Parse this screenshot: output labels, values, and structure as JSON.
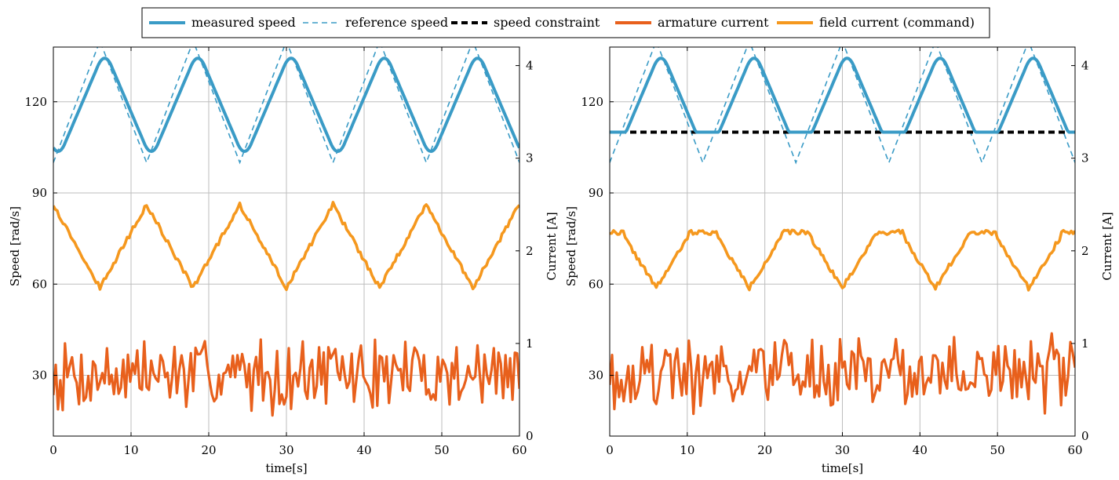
{
  "legend": {
    "items": [
      {
        "label": "measured speed",
        "color": "#3a9bc6",
        "style": "solid",
        "width": 4
      },
      {
        "label": "reference speed",
        "color": "#3a9bc6",
        "style": "dashed",
        "width": 1.6
      },
      {
        "label": "speed constraint",
        "color": "#000000",
        "style": "dashed",
        "width": 4
      },
      {
        "label": "armature current",
        "color": "#e8601c",
        "style": "solid",
        "width": 4
      },
      {
        "label": "field current (command)",
        "color": "#f5981e",
        "style": "solid",
        "width": 4
      }
    ]
  },
  "chart_data": [
    {
      "type": "line",
      "panel": "left",
      "xlabel": "time[s]",
      "ylabel": "Speed [rad/s]",
      "y2label": "Current [A]",
      "xlim": [
        0,
        60
      ],
      "ylim": [
        10,
        138
      ],
      "y2lim": [
        0,
        4.2
      ],
      "xticks": [
        0,
        10,
        20,
        30,
        40,
        50,
        60
      ],
      "yticks": [
        30,
        60,
        90,
        120
      ],
      "y2ticks": [
        0,
        1,
        2,
        3,
        4
      ],
      "grid": true,
      "reference_speed": {
        "min": 100,
        "max": 140,
        "period": 12,
        "phase": 0
      },
      "measured_speed": {
        "min": 101,
        "max": 137,
        "lag": 0.6
      },
      "speed_constraint": null,
      "field_current": {
        "min": 1.6,
        "max": 2.5
      },
      "armature_current": {
        "mean": 0.67,
        "spread": 0.38,
        "seed": 7
      },
      "annotations": {
        "reference_peaks_s": [
          6,
          18,
          30,
          42,
          54
        ],
        "reference_troughs_s": [
          0,
          12,
          24,
          36,
          48,
          60
        ]
      }
    },
    {
      "type": "line",
      "panel": "right",
      "xlabel": "time[s]",
      "ylabel": "Speed [rad/s]",
      "y2label": "Current [A]",
      "xlim": [
        0,
        60
      ],
      "ylim": [
        10,
        138
      ],
      "y2lim": [
        0,
        4.2
      ],
      "xticks": [
        0,
        10,
        20,
        30,
        40,
        50,
        60
      ],
      "yticks": [
        30,
        60,
        90,
        120
      ],
      "y2ticks": [
        0,
        1,
        2,
        3,
        4
      ],
      "grid": true,
      "reference_speed": {
        "min": 100,
        "max": 140,
        "period": 12,
        "phase": 0
      },
      "measured_speed": {
        "min": 101,
        "max": 137,
        "lag": 0.6
      },
      "speed_constraint": 110,
      "field_current": {
        "min": 1.6,
        "max": 2.2
      },
      "armature_current": {
        "mean": 0.67,
        "spread": 0.38,
        "seed": 19
      },
      "annotations": {
        "reference_peaks_s": [
          6,
          18,
          30,
          42,
          54
        ],
        "reference_troughs_s": [
          0,
          12,
          24,
          36,
          48,
          60
        ]
      }
    }
  ]
}
